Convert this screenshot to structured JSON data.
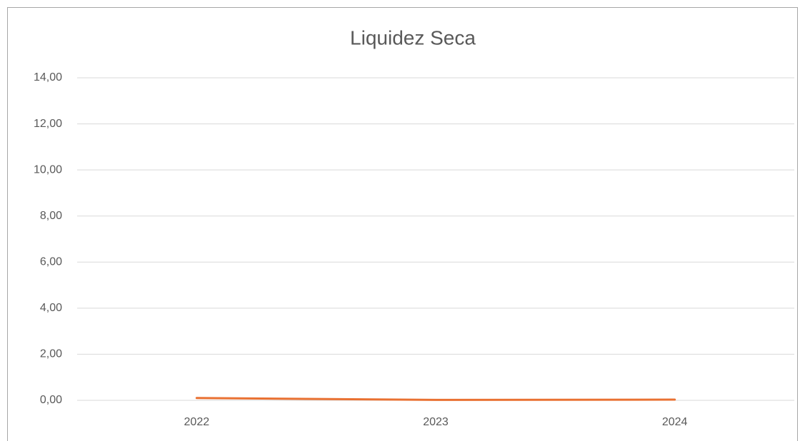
{
  "chart_data": {
    "type": "line",
    "title": "Liquidez Seca",
    "categories": [
      "2022",
      "2023",
      "2024"
    ],
    "values": [
      0.1,
      0.02,
      0.03
    ],
    "color": "#e97132",
    "ylim": [
      0,
      14
    ],
    "yticks": [
      {
        "value": 0,
        "label": "0,00"
      },
      {
        "value": 2,
        "label": "2,00"
      },
      {
        "value": 4,
        "label": "4,00"
      },
      {
        "value": 6,
        "label": "6,00"
      },
      {
        "value": 8,
        "label": "8,00"
      },
      {
        "value": 10,
        "label": "10,00"
      },
      {
        "value": 12,
        "label": "12,00"
      },
      {
        "value": 14,
        "label": "14,00"
      }
    ],
    "grid": true
  }
}
